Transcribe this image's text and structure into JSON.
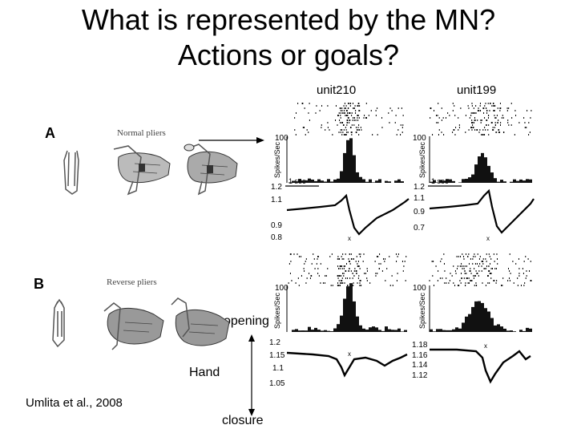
{
  "slide": {
    "title_line1": "What is represented by the MN?",
    "title_line2": "Actions or goals?",
    "unit_left": "unit210",
    "unit_right": "unit199",
    "panel_a_letter": "A",
    "panel_a_caption": "Normal pliers",
    "panel_b_letter": "B",
    "panel_b_caption": "Reverse pliers",
    "label_opening": "opening",
    "label_hand": "Hand",
    "label_closure": "closure",
    "citation": "Umlita et al., 2008"
  },
  "plots": {
    "ylabel": "Spikes/Sec",
    "left_top": {
      "rate_max": "100",
      "scale": "1 sec",
      "pos_ticks": [
        "1.2",
        "1.1",
        "0.9",
        "0.8"
      ]
    },
    "right_top": {
      "rate_max": "100",
      "scale": "1 sec",
      "pos_ticks": [
        "1.2",
        "1.1",
        "0.9",
        "0.7"
      ]
    },
    "left_bottom": {
      "rate_max": "100",
      "pos_ticks": [
        "1.2",
        "1.15",
        "1.1",
        "1.05"
      ]
    },
    "right_bottom": {
      "rate_max": "100",
      "pos_ticks": [
        "1.18",
        "1.16",
        "1.14",
        "1.12"
      ]
    }
  }
}
